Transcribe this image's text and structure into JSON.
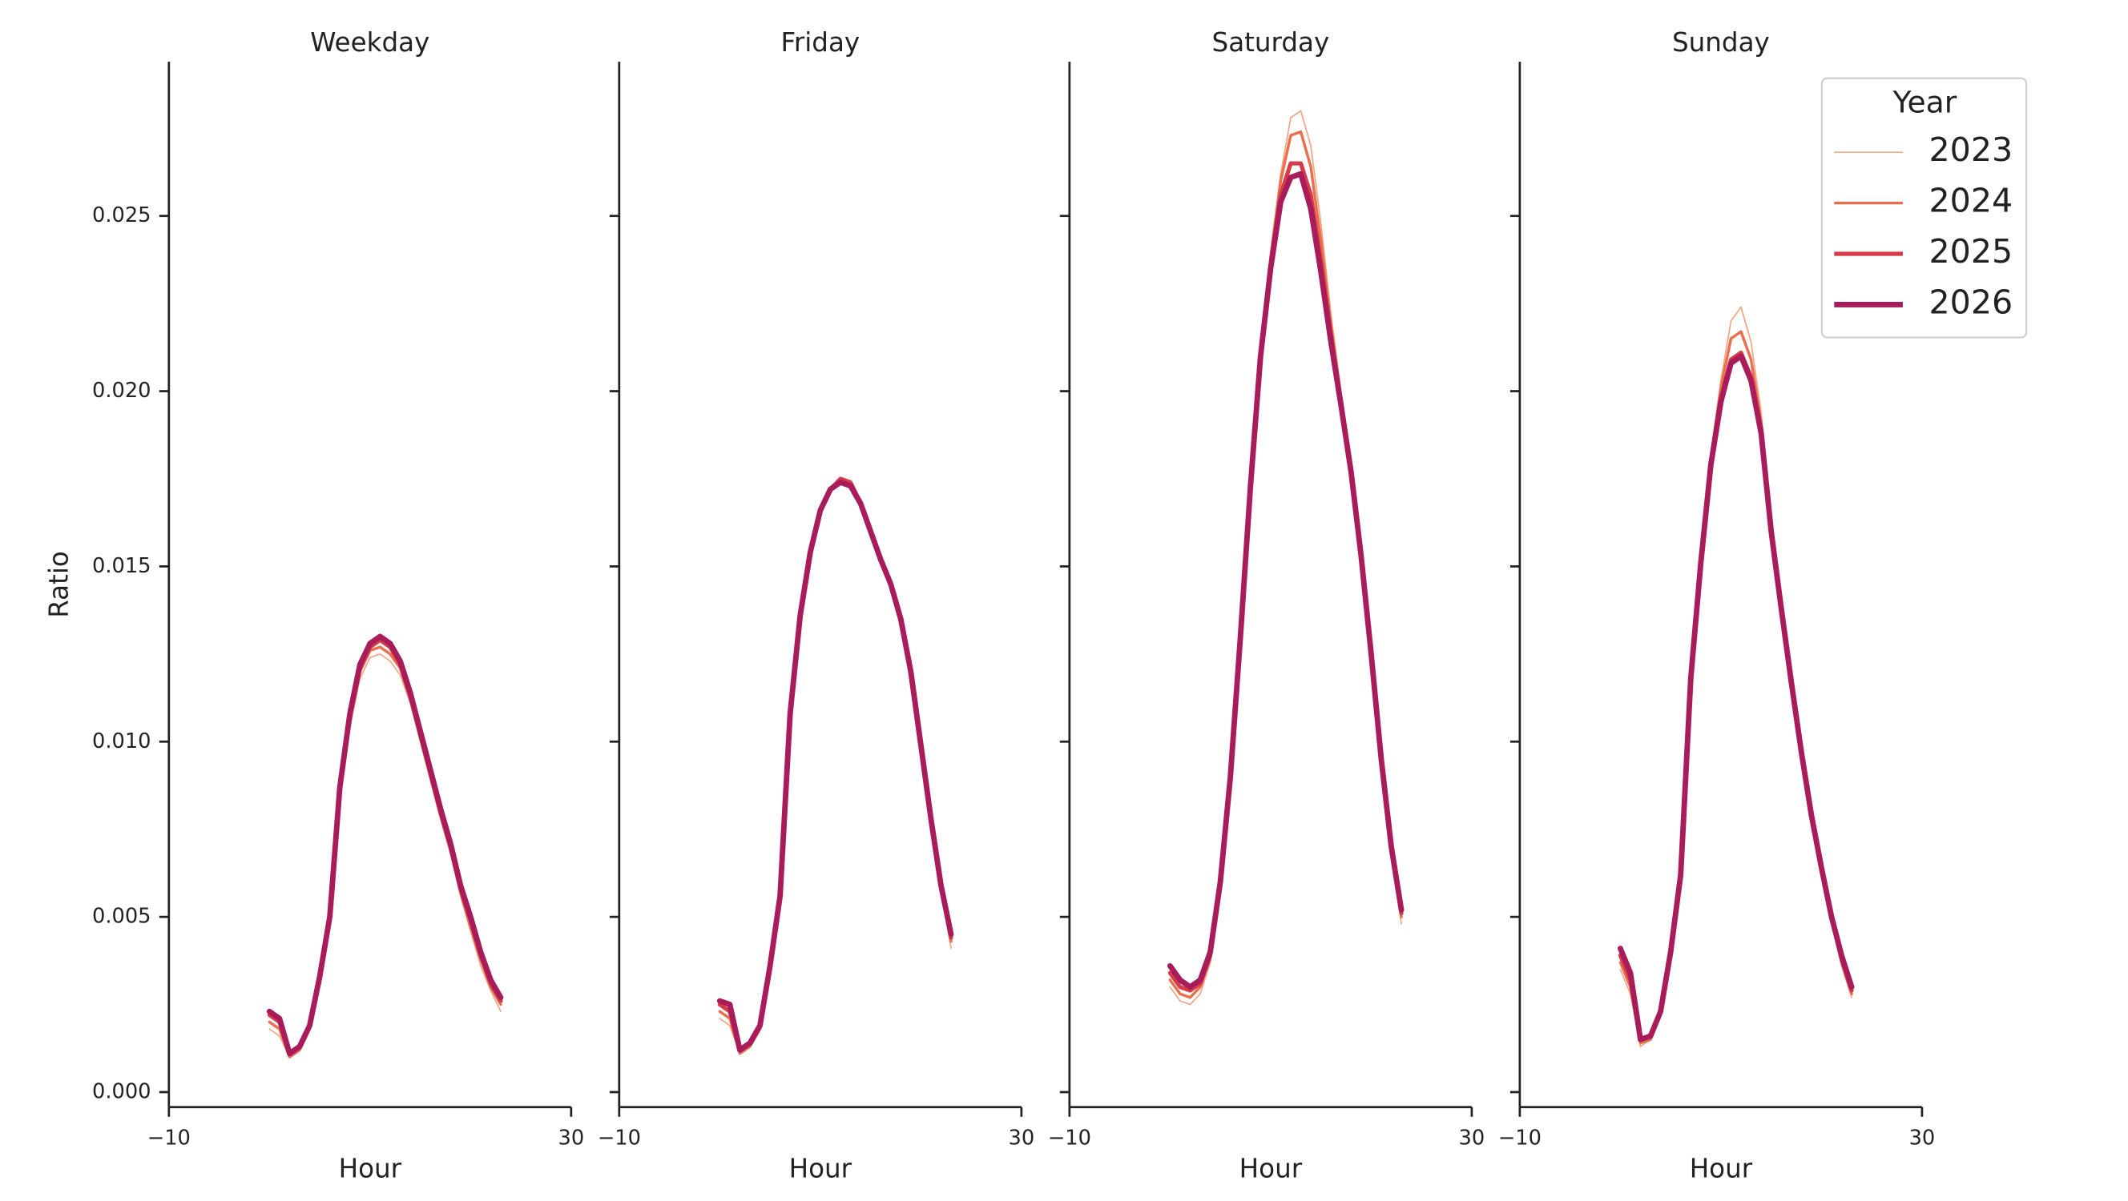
{
  "chart_data": [
    {
      "type": "line",
      "title": "Weekday",
      "xlabel": "Hour",
      "ylabel": "Ratio",
      "xlim": [
        -10,
        30
      ],
      "xticks": [
        {
          "value": -10,
          "label": "−10"
        },
        30
      ],
      "ylim": [
        -0.00043,
        0.0294
      ],
      "yticks": [
        {
          "value": 0,
          "label": "0.000"
        },
        {
          "value": 0.005,
          "label": "0.005"
        },
        {
          "value": 0.01,
          "label": "0.010"
        },
        {
          "value": 0.015,
          "label": "0.015"
        },
        {
          "value": 0.02,
          "label": "0.020"
        },
        {
          "value": 0.025,
          "label": "0.025"
        }
      ],
      "x": [
        0,
        1,
        2,
        3,
        4,
        5,
        6,
        7,
        8,
        9,
        10,
        11,
        12,
        13,
        14,
        15,
        16,
        17,
        18,
        19,
        20,
        21,
        22,
        23
      ],
      "series": [
        {
          "name": "2023",
          "color": "#f3a584",
          "linewidth": 1,
          "values": [
            0.0018,
            0.0016,
            0.001,
            0.0012,
            0.0018,
            0.0032,
            0.0049,
            0.0084,
            0.0104,
            0.0118,
            0.0124,
            0.0125,
            0.0123,
            0.0119,
            0.0111,
            0.01,
            0.0089,
            0.0078,
            0.0068,
            0.0056,
            0.0046,
            0.0036,
            0.0029,
            0.0023
          ]
        },
        {
          "name": "2024",
          "color": "#eb6f4d",
          "linewidth": 2,
          "values": [
            0.002,
            0.0018,
            0.001,
            0.0012,
            0.0018,
            0.0032,
            0.0049,
            0.0086,
            0.0106,
            0.012,
            0.0126,
            0.0127,
            0.0125,
            0.0121,
            0.0112,
            0.0101,
            0.009,
            0.0079,
            0.0069,
            0.0057,
            0.0047,
            0.0038,
            0.003,
            0.0025
          ]
        },
        {
          "name": "2025",
          "color": "#d63c48",
          "linewidth": 3,
          "values": [
            0.0022,
            0.002,
            0.0011,
            0.0013,
            0.0019,
            0.0033,
            0.005,
            0.0087,
            0.0107,
            0.0121,
            0.0127,
            0.0129,
            0.0127,
            0.0122,
            0.0113,
            0.0102,
            0.0091,
            0.008,
            0.007,
            0.0058,
            0.0049,
            0.0039,
            0.0031,
            0.0026
          ]
        },
        {
          "name": "2026",
          "color": "#a81c5c",
          "linewidth": 4,
          "values": [
            0.0023,
            0.0021,
            0.0011,
            0.0013,
            0.0019,
            0.0033,
            0.005,
            0.0087,
            0.0108,
            0.0122,
            0.0128,
            0.013,
            0.0128,
            0.0123,
            0.0114,
            0.0103,
            0.0092,
            0.0081,
            0.0071,
            0.0059,
            0.005,
            0.004,
            0.0032,
            0.0027
          ]
        }
      ]
    },
    {
      "type": "line",
      "title": "Friday",
      "xlabel": "Hour",
      "sharey": true,
      "xlim": [
        -10,
        30
      ],
      "xticks": [
        {
          "value": -10,
          "label": "−10"
        },
        30
      ],
      "x": [
        0,
        1,
        2,
        3,
        4,
        5,
        6,
        7,
        8,
        9,
        10,
        11,
        12,
        13,
        14,
        15,
        16,
        17,
        18,
        19,
        20,
        21,
        22,
        23
      ],
      "series": [
        {
          "name": "2023",
          "color": "#f3a584",
          "linewidth": 1,
          "values": [
            0.0021,
            0.0019,
            0.0011,
            0.0013,
            0.0018,
            0.0035,
            0.0055,
            0.0107,
            0.0135,
            0.0153,
            0.0165,
            0.0172,
            0.0175,
            0.0174,
            0.0168,
            0.016,
            0.0152,
            0.0145,
            0.0135,
            0.012,
            0.0099,
            0.0077,
            0.0058,
            0.0041
          ]
        },
        {
          "name": "2024",
          "color": "#eb6f4d",
          "linewidth": 2,
          "values": [
            0.0023,
            0.0021,
            0.0011,
            0.0013,
            0.0018,
            0.0035,
            0.0055,
            0.0107,
            0.0135,
            0.0153,
            0.0165,
            0.0172,
            0.0175,
            0.0174,
            0.0168,
            0.016,
            0.0152,
            0.0145,
            0.0135,
            0.012,
            0.0099,
            0.0078,
            0.0058,
            0.0043
          ]
        },
        {
          "name": "2025",
          "color": "#d63c48",
          "linewidth": 3,
          "values": [
            0.0025,
            0.0023,
            0.0012,
            0.0014,
            0.0019,
            0.0036,
            0.0056,
            0.0108,
            0.0136,
            0.0154,
            0.0166,
            0.0172,
            0.0175,
            0.0174,
            0.0168,
            0.016,
            0.0152,
            0.0145,
            0.0135,
            0.012,
            0.0099,
            0.0078,
            0.0059,
            0.0044
          ]
        },
        {
          "name": "2026",
          "color": "#a81c5c",
          "linewidth": 4,
          "values": [
            0.0026,
            0.0025,
            0.0012,
            0.0014,
            0.0019,
            0.0036,
            0.0056,
            0.0108,
            0.0136,
            0.0154,
            0.0166,
            0.0172,
            0.0174,
            0.0173,
            0.0168,
            0.016,
            0.0152,
            0.0145,
            0.0135,
            0.012,
            0.0099,
            0.0078,
            0.0059,
            0.0045
          ]
        }
      ]
    },
    {
      "type": "line",
      "title": "Saturday",
      "xlabel": "Hour",
      "sharey": true,
      "xlim": [
        -10,
        30
      ],
      "xticks": [
        {
          "value": -10,
          "label": "−10"
        },
        30
      ],
      "x": [
        0,
        1,
        2,
        3,
        4,
        5,
        6,
        7,
        8,
        9,
        10,
        11,
        12,
        13,
        14,
        15,
        16,
        17,
        18,
        19,
        20,
        21,
        22,
        23
      ],
      "series": [
        {
          "name": "2023",
          "color": "#f3a584",
          "linewidth": 1,
          "values": [
            0.003,
            0.0026,
            0.0025,
            0.0028,
            0.0037,
            0.0058,
            0.0089,
            0.013,
            0.0175,
            0.0213,
            0.024,
            0.0262,
            0.0278,
            0.028,
            0.027,
            0.0248,
            0.0222,
            0.02,
            0.0178,
            0.0153,
            0.0125,
            0.0094,
            0.0069,
            0.0048
          ]
        },
        {
          "name": "2024",
          "color": "#eb6f4d",
          "linewidth": 2,
          "values": [
            0.0032,
            0.0028,
            0.0027,
            0.003,
            0.0038,
            0.0059,
            0.0089,
            0.013,
            0.0174,
            0.0212,
            0.0238,
            0.026,
            0.0273,
            0.0274,
            0.0264,
            0.0243,
            0.0219,
            0.0198,
            0.0177,
            0.0153,
            0.0125,
            0.0094,
            0.0069,
            0.005
          ]
        },
        {
          "name": "2025",
          "color": "#d63c48",
          "linewidth": 3,
          "values": [
            0.0034,
            0.003,
            0.0029,
            0.0031,
            0.0039,
            0.006,
            0.009,
            0.013,
            0.0173,
            0.0211,
            0.0236,
            0.0256,
            0.0265,
            0.0265,
            0.0256,
            0.0237,
            0.0216,
            0.0197,
            0.0177,
            0.0153,
            0.0125,
            0.0095,
            0.007,
            0.0051
          ]
        },
        {
          "name": "2026",
          "color": "#a81c5c",
          "linewidth": 4,
          "values": [
            0.0036,
            0.0032,
            0.003,
            0.0032,
            0.004,
            0.006,
            0.009,
            0.013,
            0.0173,
            0.021,
            0.0235,
            0.0254,
            0.0261,
            0.0262,
            0.0252,
            0.0234,
            0.0214,
            0.0196,
            0.0177,
            0.0153,
            0.0125,
            0.0095,
            0.007,
            0.0052
          ]
        }
      ]
    },
    {
      "type": "line",
      "title": "Sunday",
      "xlabel": "Hour",
      "sharey": true,
      "xlim": [
        -10,
        30
      ],
      "xticks": [
        {
          "value": -10,
          "label": "−10"
        },
        30
      ],
      "x": [
        0,
        1,
        2,
        3,
        4,
        5,
        6,
        7,
        8,
        9,
        10,
        11,
        12,
        13,
        14,
        15,
        16,
        17,
        18,
        19,
        20,
        21,
        22,
        23
      ],
      "legend_title": "Year",
      "legend": "upper right",
      "series": [
        {
          "name": "2023",
          "color": "#f3a584",
          "linewidth": 1,
          "values": [
            0.0035,
            0.0028,
            0.0013,
            0.0015,
            0.0022,
            0.004,
            0.0062,
            0.0118,
            0.0152,
            0.0182,
            0.0203,
            0.022,
            0.0224,
            0.0214,
            0.0194,
            0.0165,
            0.0139,
            0.0117,
            0.0097,
            0.0078,
            0.0062,
            0.0048,
            0.0036,
            0.0027
          ]
        },
        {
          "name": "2024",
          "color": "#eb6f4d",
          "linewidth": 2,
          "values": [
            0.0037,
            0.003,
            0.0014,
            0.0015,
            0.0022,
            0.004,
            0.0062,
            0.0118,
            0.0152,
            0.0181,
            0.0201,
            0.0215,
            0.0217,
            0.0209,
            0.0191,
            0.0163,
            0.0138,
            0.0117,
            0.0097,
            0.0078,
            0.0063,
            0.0049,
            0.0037,
            0.0028
          ]
        },
        {
          "name": "2025",
          "color": "#d63c48",
          "linewidth": 3,
          "values": [
            0.0039,
            0.0032,
            0.0015,
            0.0016,
            0.0023,
            0.004,
            0.0062,
            0.0118,
            0.0151,
            0.018,
            0.0198,
            0.0209,
            0.0211,
            0.0204,
            0.0189,
            0.0161,
            0.0138,
            0.0117,
            0.0097,
            0.0079,
            0.0064,
            0.005,
            0.0038,
            0.0029
          ]
        },
        {
          "name": "2026",
          "color": "#a81c5c",
          "linewidth": 4,
          "values": [
            0.0041,
            0.0034,
            0.0015,
            0.0016,
            0.0023,
            0.004,
            0.0062,
            0.0118,
            0.0151,
            0.0179,
            0.0197,
            0.0208,
            0.021,
            0.0203,
            0.0188,
            0.016,
            0.0138,
            0.0117,
            0.0097,
            0.0079,
            0.0064,
            0.005,
            0.0039,
            0.003
          ]
        }
      ]
    }
  ]
}
